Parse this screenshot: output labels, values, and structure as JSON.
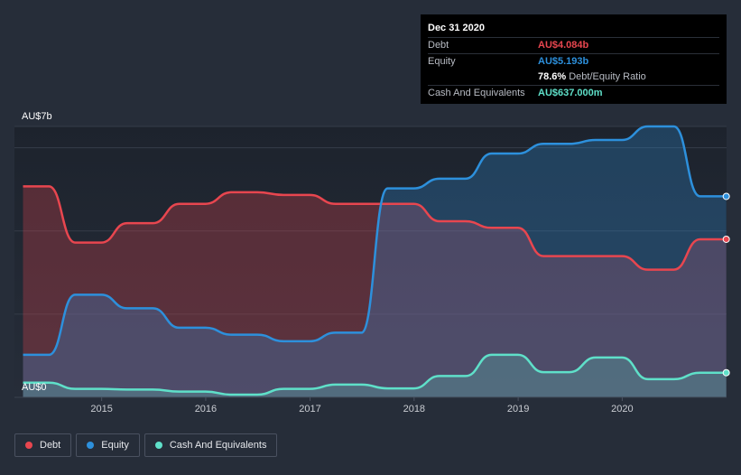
{
  "tooltip": {
    "date": "Dec 31 2020",
    "debt_label": "Debt",
    "debt_value": "AU$4.084b",
    "equity_label": "Equity",
    "equity_value": "AU$5.193b",
    "ratio_value": "78.6%",
    "ratio_label": "Debt/Equity Ratio",
    "cash_label": "Cash And Equivalents",
    "cash_value": "AU$637.000m"
  },
  "legend": {
    "debt": "Debt",
    "equity": "Equity",
    "cash": "Cash And Equivalents"
  },
  "colors": {
    "debt": "#e8464f",
    "equity": "#2d90dc",
    "cash": "#5fe0c9",
    "background": "#262d39"
  },
  "chart_data": {
    "type": "area",
    "ylim": [
      0,
      7
    ],
    "y_unit": "AU$ billions",
    "y_tick_labels": [
      "AU$0",
      "AU$7b"
    ],
    "x_tick_labels": [
      "2015",
      "2016",
      "2017",
      "2018",
      "2019",
      "2020"
    ],
    "xlim": [
      "2014-03-01",
      "2021-01-01"
    ],
    "series": [
      {
        "name": "Debt",
        "points": [
          [
            "2014-03-31",
            5.45
          ],
          [
            "2014-06-30",
            5.45
          ],
          [
            "2014-09-30",
            4.0
          ],
          [
            "2014-12-31",
            4.0
          ],
          [
            "2015-03-31",
            4.5
          ],
          [
            "2015-06-30",
            4.5
          ],
          [
            "2015-09-30",
            5.0
          ],
          [
            "2015-12-31",
            5.0
          ],
          [
            "2016-03-31",
            5.3
          ],
          [
            "2016-06-30",
            5.3
          ],
          [
            "2016-09-30",
            5.23
          ],
          [
            "2016-12-31",
            5.23
          ],
          [
            "2017-03-31",
            5.0
          ],
          [
            "2017-06-30",
            5.0
          ],
          [
            "2017-09-30",
            5.0
          ],
          [
            "2017-12-31",
            5.0
          ],
          [
            "2018-03-31",
            4.55
          ],
          [
            "2018-06-30",
            4.55
          ],
          [
            "2018-09-30",
            4.38
          ],
          [
            "2018-12-31",
            4.38
          ],
          [
            "2019-03-31",
            3.65
          ],
          [
            "2019-06-30",
            3.65
          ],
          [
            "2019-09-30",
            3.65
          ],
          [
            "2019-12-31",
            3.65
          ],
          [
            "2020-03-31",
            3.3
          ],
          [
            "2020-06-30",
            3.3
          ],
          [
            "2020-09-30",
            4.084
          ],
          [
            "2020-12-31",
            4.084
          ]
        ]
      },
      {
        "name": "Equity",
        "points": [
          [
            "2014-03-31",
            1.1
          ],
          [
            "2014-06-30",
            1.1
          ],
          [
            "2014-09-30",
            2.65
          ],
          [
            "2014-12-31",
            2.65
          ],
          [
            "2015-03-31",
            2.3
          ],
          [
            "2015-06-30",
            2.3
          ],
          [
            "2015-09-30",
            1.8
          ],
          [
            "2015-12-31",
            1.8
          ],
          [
            "2016-03-31",
            1.62
          ],
          [
            "2016-06-30",
            1.62
          ],
          [
            "2016-09-30",
            1.45
          ],
          [
            "2016-12-31",
            1.45
          ],
          [
            "2017-03-31",
            1.67
          ],
          [
            "2017-06-30",
            1.67
          ],
          [
            "2017-09-30",
            5.4
          ],
          [
            "2017-12-31",
            5.4
          ],
          [
            "2018-03-31",
            5.65
          ],
          [
            "2018-06-30",
            5.65
          ],
          [
            "2018-09-30",
            6.3
          ],
          [
            "2018-12-31",
            6.3
          ],
          [
            "2019-03-31",
            6.55
          ],
          [
            "2019-06-30",
            6.55
          ],
          [
            "2019-09-30",
            6.65
          ],
          [
            "2019-12-31",
            6.65
          ],
          [
            "2020-03-31",
            7.0
          ],
          [
            "2020-06-30",
            7.0
          ],
          [
            "2020-09-30",
            5.193
          ],
          [
            "2020-12-31",
            5.193
          ]
        ]
      },
      {
        "name": "Cash And Equivalents",
        "points": [
          [
            "2014-03-31",
            0.38
          ],
          [
            "2014-06-30",
            0.38
          ],
          [
            "2014-09-30",
            0.22
          ],
          [
            "2014-12-31",
            0.22
          ],
          [
            "2015-03-31",
            0.2
          ],
          [
            "2015-06-30",
            0.2
          ],
          [
            "2015-09-30",
            0.15
          ],
          [
            "2015-12-31",
            0.15
          ],
          [
            "2016-03-31",
            0.07
          ],
          [
            "2016-06-30",
            0.07
          ],
          [
            "2016-09-30",
            0.22
          ],
          [
            "2016-12-31",
            0.22
          ],
          [
            "2017-03-31",
            0.33
          ],
          [
            "2017-06-30",
            0.33
          ],
          [
            "2017-09-30",
            0.23
          ],
          [
            "2017-12-31",
            0.23
          ],
          [
            "2018-03-31",
            0.55
          ],
          [
            "2018-06-30",
            0.55
          ],
          [
            "2018-09-30",
            1.1
          ],
          [
            "2018-12-31",
            1.1
          ],
          [
            "2019-03-31",
            0.65
          ],
          [
            "2019-06-30",
            0.65
          ],
          [
            "2019-09-30",
            1.03
          ],
          [
            "2019-12-31",
            1.03
          ],
          [
            "2020-03-31",
            0.47
          ],
          [
            "2020-06-30",
            0.47
          ],
          [
            "2020-09-30",
            0.637
          ],
          [
            "2020-12-31",
            0.637
          ]
        ]
      }
    ]
  }
}
